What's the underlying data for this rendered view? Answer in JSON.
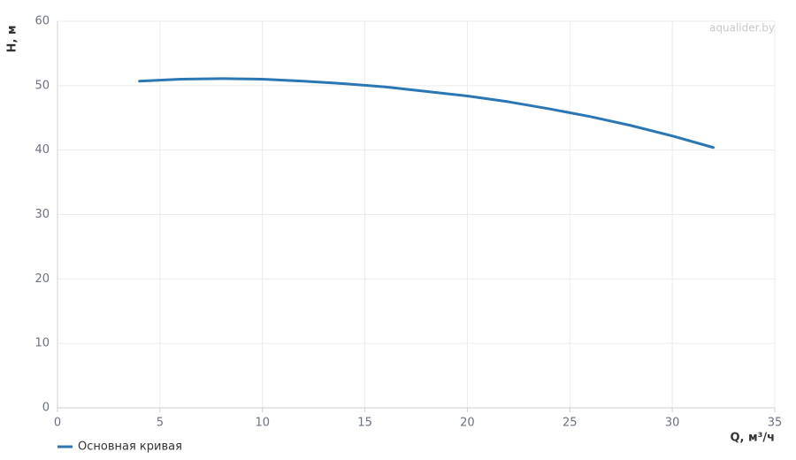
{
  "chart_data": {
    "type": "line",
    "watermark": "aqualider.by",
    "x_label": "Q, м³/ч",
    "y_label": "H, м",
    "x": [
      4,
      6,
      8,
      10,
      12,
      14,
      16,
      18,
      20,
      22,
      24,
      26,
      28,
      30,
      32
    ],
    "series": [
      {
        "name": "Основная кривая",
        "color": "#2a77b4",
        "values": [
          50.7,
          51.0,
          51.1,
          51.0,
          50.7,
          50.3,
          49.8,
          49.1,
          48.4,
          47.5,
          46.4,
          45.2,
          43.8,
          42.2,
          40.4
        ]
      }
    ],
    "xlim": [
      0,
      35
    ],
    "xticks": [
      0,
      5,
      10,
      15,
      20,
      25,
      30,
      35
    ],
    "ylim": [
      0,
      60
    ],
    "yticks": [
      0,
      10,
      20,
      30,
      40,
      50,
      60
    ],
    "grid": true,
    "legend": "bottom-left"
  }
}
